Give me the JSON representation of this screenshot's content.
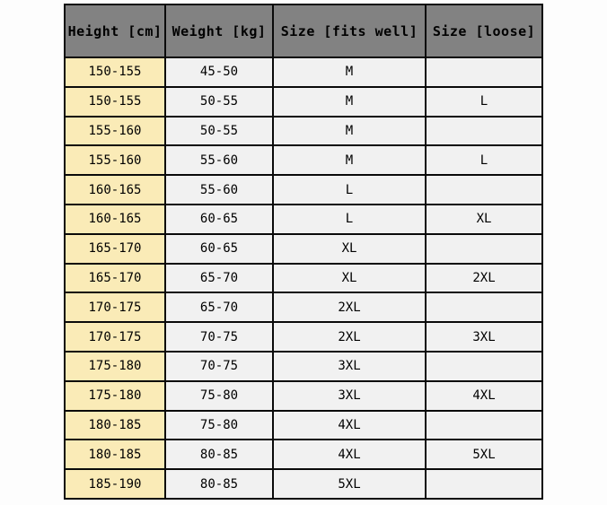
{
  "table": {
    "headers": [
      "Height [cm]",
      "Weight [kg]",
      "Size [fits well]",
      "Size [loose]"
    ],
    "rows": [
      {
        "height": "150-155",
        "weight": "45-50",
        "fit": "M",
        "loose": ""
      },
      {
        "height": "150-155",
        "weight": "50-55",
        "fit": "M",
        "loose": "L"
      },
      {
        "height": "155-160",
        "weight": "50-55",
        "fit": "M",
        "loose": ""
      },
      {
        "height": "155-160",
        "weight": "55-60",
        "fit": "M",
        "loose": "L"
      },
      {
        "height": "160-165",
        "weight": "55-60",
        "fit": "L",
        "loose": ""
      },
      {
        "height": "160-165",
        "weight": "60-65",
        "fit": "L",
        "loose": "XL"
      },
      {
        "height": "165-170",
        "weight": "60-65",
        "fit": "XL",
        "loose": ""
      },
      {
        "height": "165-170",
        "weight": "65-70",
        "fit": "XL",
        "loose": "2XL"
      },
      {
        "height": "170-175",
        "weight": "65-70",
        "fit": "2XL",
        "loose": ""
      },
      {
        "height": "170-175",
        "weight": "70-75",
        "fit": "2XL",
        "loose": "3XL"
      },
      {
        "height": "175-180",
        "weight": "70-75",
        "fit": "3XL",
        "loose": ""
      },
      {
        "height": "175-180",
        "weight": "75-80",
        "fit": "3XL",
        "loose": "4XL"
      },
      {
        "height": "180-185",
        "weight": "75-80",
        "fit": "4XL",
        "loose": ""
      },
      {
        "height": "180-185",
        "weight": "80-85",
        "fit": "4XL",
        "loose": "5XL"
      },
      {
        "height": "185-190",
        "weight": "80-85",
        "fit": "5XL",
        "loose": ""
      }
    ]
  },
  "colors": {
    "header_bg": "#828282",
    "height_column_bg": "#faebb7",
    "cell_bg": "#f1f1f1",
    "border": "#0a0a0a",
    "page_bg": "#fdfdfd",
    "text": "#000000"
  }
}
